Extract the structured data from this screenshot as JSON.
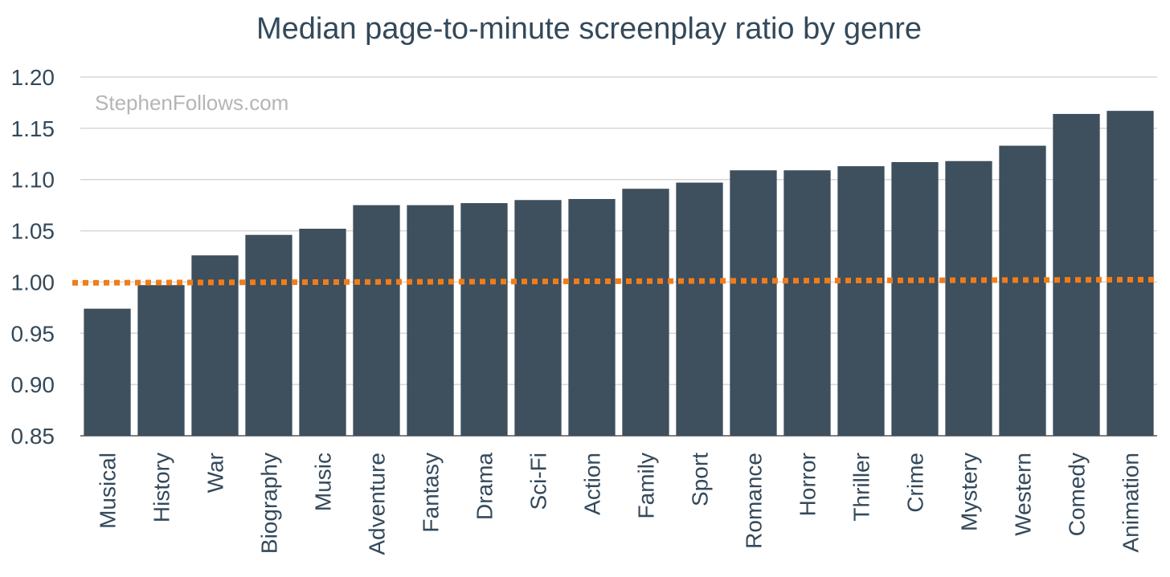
{
  "chart_data": {
    "type": "bar",
    "title": "Median page-to-minute screenplay ratio by genre",
    "watermark": "StephenFollows.com",
    "xlabel": "",
    "ylabel": "",
    "ylim": [
      0.85,
      1.2
    ],
    "yticks": [
      "1.20",
      "1.15",
      "1.10",
      "1.05",
      "1.00",
      "0.95",
      "0.90",
      "0.85"
    ],
    "grid": true,
    "categories": [
      "Musical",
      "History",
      "War",
      "Biography",
      "Music",
      "Adventure",
      "Fantasy",
      "Drama",
      "Sci-Fi",
      "Action",
      "Family",
      "Sport",
      "Romance",
      "Horror",
      "Thriller",
      "Crime",
      "Mystery",
      "Western",
      "Comedy",
      "Animation"
    ],
    "values": [
      0.974,
      0.997,
      1.026,
      1.046,
      1.052,
      1.075,
      1.075,
      1.077,
      1.08,
      1.081,
      1.091,
      1.097,
      1.109,
      1.109,
      1.113,
      1.117,
      1.118,
      1.133,
      1.164,
      1.167
    ],
    "reference_line": {
      "y": 1.0,
      "style": "dotted"
    },
    "colors": {
      "bar": "#3e4f5d",
      "reference": "#f07d1a",
      "grid": "#d6d6d6",
      "text": "#34495a"
    }
  }
}
